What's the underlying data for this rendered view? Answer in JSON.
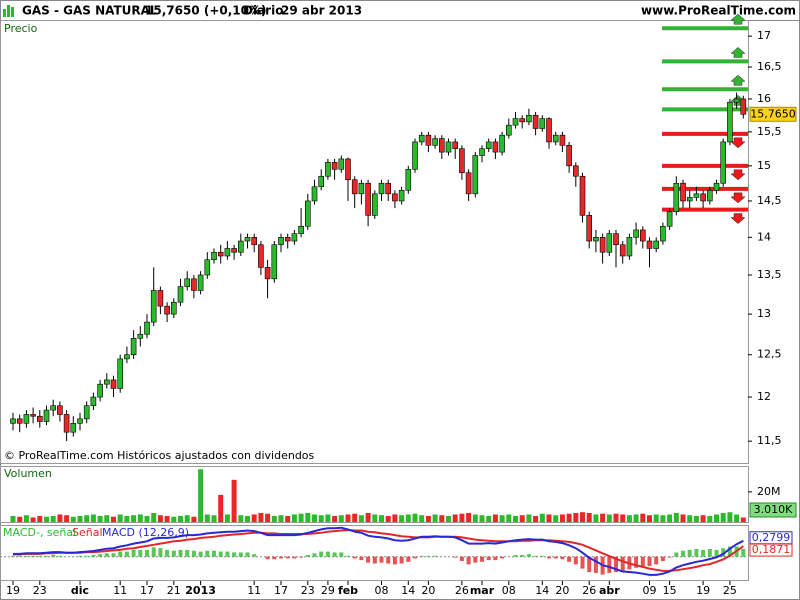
{
  "chart_data": {
    "type": "candlestick",
    "header": {
      "symbol": "GAS - GAS NATURAL",
      "quote": "15,7650 (+0,10%)",
      "period": "Diario",
      "date": "29 abr 2013",
      "site": "www.ProRealTime.com"
    },
    "panel_label": "Precio",
    "footer": "© ProRealTime.com Históricos ajustados con dividendos",
    "log_scale": true,
    "up_color": "#2db92d",
    "down_color": "#e82828",
    "xlim": [
      -1.94,
      109.7
    ],
    "xticks": [
      {
        "value": 0,
        "label": "19"
      },
      {
        "value": 4,
        "label": "23"
      },
      {
        "value": 10,
        "label": "dic"
      },
      {
        "value": 16,
        "label": "11"
      },
      {
        "value": 20,
        "label": "17"
      },
      {
        "value": 24,
        "label": "21"
      },
      {
        "value": 28,
        "label": "2013"
      },
      {
        "value": 36,
        "label": "11"
      },
      {
        "value": 40,
        "label": "17"
      },
      {
        "value": 44,
        "label": "23"
      },
      {
        "value": 47,
        "label": "29"
      },
      {
        "value": 50,
        "label": "feb"
      },
      {
        "value": 55,
        "label": "08"
      },
      {
        "value": 59,
        "label": "14"
      },
      {
        "value": 62,
        "label": "20"
      },
      {
        "value": 67,
        "label": "26"
      },
      {
        "value": 70,
        "label": "mar"
      },
      {
        "value": 74,
        "label": "08"
      },
      {
        "value": 79,
        "label": "14"
      },
      {
        "value": 82,
        "label": "20"
      },
      {
        "value": 86,
        "label": "26"
      },
      {
        "value": 89,
        "label": "abr"
      },
      {
        "value": 95,
        "label": "09"
      },
      {
        "value": 98,
        "label": "15"
      },
      {
        "value": 103,
        "label": "19"
      },
      {
        "value": 107,
        "label": "25"
      }
    ],
    "ylim": [
      11.26,
      17.25
    ],
    "yticks": [
      {
        "value": 11.5,
        "label": "11,5"
      },
      12,
      {
        "value": 12.5,
        "label": "12,5"
      },
      13,
      {
        "value": 13.5,
        "label": "13,5"
      },
      14,
      {
        "value": 14.5,
        "label": "14,5"
      },
      15,
      {
        "value": 15.5,
        "label": "15,5"
      },
      16,
      {
        "value": 16.5,
        "label": "16,5"
      },
      17
    ],
    "last_price": {
      "value": 15.765,
      "label": "15,7650"
    },
    "open": [
      11.7,
      11.75,
      11.7,
      11.8,
      11.78,
      11.72,
      11.85,
      11.9,
      11.8,
      11.6,
      11.7,
      11.75,
      11.9,
      12.0,
      12.15,
      12.2,
      12.1,
      12.45,
      12.5,
      12.7,
      12.75,
      12.9,
      13.3,
      13.1,
      13.0,
      13.15,
      13.35,
      13.45,
      13.3,
      13.5,
      13.7,
      13.8,
      13.75,
      13.85,
      13.8,
      13.95,
      14.0,
      13.9,
      13.6,
      13.45,
      13.9,
      14.0,
      13.95,
      14.05,
      14.15,
      14.5,
      14.7,
      14.85,
      15.05,
      14.95,
      15.1,
      14.8,
      14.6,
      14.75,
      14.3,
      14.6,
      14.75,
      14.6,
      14.5,
      14.65,
      14.95,
      15.35,
      15.45,
      15.3,
      15.4,
      15.2,
      15.35,
      15.25,
      14.9,
      14.6,
      15.15,
      15.25,
      15.35,
      15.2,
      15.45,
      15.6,
      15.7,
      15.65,
      15.75,
      15.55,
      15.7,
      15.35,
      15.45,
      15.3,
      15.0,
      14.85,
      14.3,
      13.95,
      14.0,
      13.8,
      14.05,
      13.9,
      13.75,
      14.0,
      14.1,
      13.95,
      13.85,
      13.95,
      14.15,
      14.35,
      14.75,
      14.5,
      14.55,
      14.6,
      14.5,
      14.65,
      14.75,
      15.35,
      15.95,
      16.0
    ],
    "high": [
      11.82,
      11.8,
      11.85,
      11.88,
      11.85,
      11.9,
      11.97,
      11.95,
      11.85,
      11.78,
      11.82,
      11.95,
      12.05,
      12.2,
      12.28,
      12.25,
      12.5,
      12.6,
      12.8,
      12.85,
      13.0,
      13.6,
      13.35,
      13.15,
      13.2,
      13.45,
      13.55,
      13.5,
      13.55,
      13.8,
      13.85,
      13.9,
      13.95,
      13.9,
      14.05,
      14.05,
      14.05,
      13.95,
      13.7,
      13.95,
      14.05,
      14.05,
      14.1,
      14.4,
      14.6,
      14.8,
      14.95,
      15.1,
      15.1,
      15.15,
      15.12,
      14.85,
      14.8,
      14.8,
      14.65,
      14.8,
      14.8,
      14.65,
      14.7,
      15.0,
      15.4,
      15.5,
      15.5,
      15.45,
      15.45,
      15.4,
      15.4,
      15.3,
      14.95,
      15.2,
      15.3,
      15.4,
      15.4,
      15.5,
      15.7,
      15.8,
      15.75,
      15.85,
      15.8,
      15.75,
      15.72,
      15.5,
      15.5,
      15.35,
      15.05,
      14.9,
      14.35,
      14.1,
      14.05,
      14.1,
      14.1,
      13.95,
      14.05,
      14.2,
      14.15,
      14.0,
      14.0,
      14.2,
      14.4,
      14.85,
      14.8,
      14.65,
      14.7,
      14.65,
      14.7,
      14.8,
      15.4,
      16.0,
      16.1,
      16.05
    ],
    "low": [
      11.62,
      11.6,
      11.65,
      11.7,
      11.65,
      11.68,
      11.78,
      11.72,
      11.5,
      11.55,
      11.62,
      11.7,
      11.85,
      11.95,
      12.1,
      12.0,
      12.05,
      12.4,
      12.45,
      12.6,
      12.7,
      12.85,
      13.0,
      12.9,
      12.95,
      13.1,
      13.3,
      13.2,
      13.25,
      13.45,
      13.65,
      13.65,
      13.7,
      13.7,
      13.75,
      13.85,
      13.8,
      13.5,
      13.2,
      13.4,
      13.8,
      13.85,
      13.9,
      14.0,
      14.1,
      14.45,
      14.65,
      14.8,
      14.8,
      14.9,
      14.5,
      14.4,
      14.45,
      14.15,
      14.25,
      14.5,
      14.5,
      14.4,
      14.45,
      14.6,
      14.9,
      15.3,
      15.2,
      15.25,
      15.1,
      15.15,
      15.1,
      14.8,
      14.5,
      14.55,
      15.05,
      15.2,
      15.1,
      15.15,
      15.4,
      15.55,
      15.55,
      15.6,
      15.45,
      15.5,
      15.25,
      15.3,
      15.2,
      14.9,
      14.7,
      14.2,
      13.85,
      13.8,
      13.65,
      13.75,
      13.6,
      13.65,
      13.7,
      13.9,
      13.85,
      13.6,
      13.8,
      13.9,
      14.1,
      14.3,
      14.4,
      14.4,
      14.5,
      14.4,
      14.45,
      14.6,
      14.7,
      15.3,
      15.85,
      15.7
    ],
    "close": [
      11.75,
      11.7,
      11.8,
      11.78,
      11.72,
      11.85,
      11.9,
      11.8,
      11.6,
      11.7,
      11.75,
      11.9,
      12.0,
      12.15,
      12.2,
      12.1,
      12.45,
      12.5,
      12.7,
      12.75,
      12.9,
      13.3,
      13.1,
      13.0,
      13.15,
      13.35,
      13.45,
      13.3,
      13.5,
      13.7,
      13.8,
      13.75,
      13.85,
      13.8,
      13.95,
      14.0,
      13.9,
      13.6,
      13.45,
      13.9,
      14.0,
      13.95,
      14.05,
      14.15,
      14.5,
      14.7,
      14.85,
      15.05,
      14.95,
      15.1,
      14.8,
      14.6,
      14.75,
      14.3,
      14.6,
      14.75,
      14.6,
      14.5,
      14.65,
      14.95,
      15.35,
      15.45,
      15.3,
      15.4,
      15.2,
      15.35,
      15.25,
      14.9,
      14.6,
      15.15,
      15.25,
      15.35,
      15.2,
      15.45,
      15.6,
      15.7,
      15.65,
      15.75,
      15.55,
      15.7,
      15.35,
      15.45,
      15.3,
      15.0,
      14.85,
      14.3,
      13.95,
      14.0,
      13.8,
      14.05,
      13.9,
      13.75,
      14.0,
      14.1,
      13.95,
      13.85,
      13.95,
      14.15,
      14.35,
      14.75,
      14.5,
      14.55,
      14.6,
      14.5,
      14.65,
      14.75,
      15.35,
      15.95,
      16.0,
      15.765
    ],
    "levels": [
      {
        "value": 17.13,
        "color": "#33b233"
      },
      {
        "value": 16.59,
        "color": "#33b233"
      },
      {
        "value": 16.15,
        "color": "#33b233"
      },
      {
        "value": 15.84,
        "color": "#33b233"
      },
      {
        "value": 15.47,
        "color": "#e81a1a"
      },
      {
        "value": 15.0,
        "color": "#e81a1a"
      },
      {
        "value": 14.67,
        "color": "#e81a1a"
      },
      {
        "value": 14.38,
        "color": "#e81a1a"
      }
    ],
    "volume": {
      "title": "Volumen",
      "ylim": [
        0,
        36.5
      ],
      "yticks": [
        {
          "value": 20,
          "label": "20M"
        }
      ],
      "last_label": "3.010K",
      "values": [
        4,
        3.5,
        4.5,
        3,
        4,
        3.5,
        4,
        5,
        4.5,
        3.5,
        4,
        4.5,
        5,
        4,
        4.5,
        3.5,
        5,
        4,
        4.5,
        5,
        4,
        6,
        4.5,
        4,
        3.5,
        4,
        4.5,
        3.5,
        35,
        5,
        4.5,
        18,
        5,
        28,
        4.5,
        4,
        5,
        6,
        5.5,
        4,
        4.5,
        4,
        5,
        5.5,
        6,
        5,
        4.5,
        5,
        4,
        4.5,
        5,
        5.5,
        4.5,
        6,
        5,
        4.5,
        4,
        5,
        4.5,
        5,
        5.5,
        4.5,
        4,
        5,
        4.5,
        4,
        5,
        5.5,
        6,
        5,
        4.5,
        4,
        5,
        4.5,
        5,
        4,
        4.5,
        5,
        4,
        5.5,
        5,
        4.5,
        5,
        5.5,
        6,
        6.5,
        6,
        5,
        5.5,
        5,
        5.5,
        5,
        4.5,
        5,
        5.5,
        4.5,
        5,
        4.5,
        5,
        6,
        5,
        4.5,
        4,
        4.5,
        4,
        5,
        6,
        6.5,
        5,
        3.01
      ]
    },
    "macd": {
      "ylim": [
        -0.41,
        0.54
      ],
      "histogram": {
        "name": "MACD-, señal",
        "color": "#2db92d"
      },
      "series": [
        {
          "name": "Señal",
          "color": "#e02828",
          "last_label": "0,1871",
          "values": [
            0.04,
            0.04,
            0.05,
            0.05,
            0.05,
            0.06,
            0.06,
            0.07,
            0.07,
            0.07,
            0.07,
            0.08,
            0.08,
            0.09,
            0.1,
            0.11,
            0.12,
            0.14,
            0.15,
            0.17,
            0.19,
            0.21,
            0.23,
            0.25,
            0.27,
            0.28,
            0.3,
            0.31,
            0.33,
            0.34,
            0.35,
            0.37,
            0.38,
            0.39,
            0.4,
            0.41,
            0.42,
            0.42,
            0.41,
            0.41,
            0.4,
            0.4,
            0.4,
            0.4,
            0.4,
            0.41,
            0.42,
            0.44,
            0.45,
            0.46,
            0.47,
            0.46,
            0.46,
            0.44,
            0.43,
            0.41,
            0.4,
            0.38,
            0.36,
            0.35,
            0.34,
            0.34,
            0.34,
            0.35,
            0.35,
            0.35,
            0.35,
            0.34,
            0.32,
            0.3,
            0.29,
            0.28,
            0.27,
            0.27,
            0.27,
            0.27,
            0.28,
            0.28,
            0.29,
            0.29,
            0.29,
            0.28,
            0.27,
            0.26,
            0.24,
            0.21,
            0.16,
            0.11,
            0.06,
            0.01,
            -0.04,
            -0.08,
            -0.12,
            -0.15,
            -0.18,
            -0.21,
            -0.23,
            -0.25,
            -0.25,
            -0.24,
            -0.22,
            -0.2,
            -0.18,
            -0.15,
            -0.13,
            -0.09,
            -0.05,
            0.02,
            0.1,
            0.1871
          ]
        },
        {
          "name": "MACD (12,26,9)",
          "color": "#2828d8",
          "last_label": "0,2799",
          "values": [
            0.05,
            0.05,
            0.06,
            0.06,
            0.06,
            0.07,
            0.08,
            0.08,
            0.07,
            0.07,
            0.08,
            0.09,
            0.1,
            0.12,
            0.14,
            0.15,
            0.18,
            0.2,
            0.23,
            0.25,
            0.27,
            0.32,
            0.33,
            0.33,
            0.34,
            0.36,
            0.38,
            0.38,
            0.39,
            0.41,
            0.42,
            0.43,
            0.44,
            0.44,
            0.45,
            0.46,
            0.45,
            0.42,
            0.38,
            0.38,
            0.38,
            0.38,
            0.38,
            0.39,
            0.42,
            0.45,
            0.48,
            0.5,
            0.5,
            0.51,
            0.48,
            0.44,
            0.42,
            0.37,
            0.35,
            0.34,
            0.32,
            0.29,
            0.28,
            0.29,
            0.32,
            0.35,
            0.35,
            0.36,
            0.35,
            0.35,
            0.34,
            0.29,
            0.23,
            0.23,
            0.23,
            0.24,
            0.23,
            0.25,
            0.27,
            0.29,
            0.3,
            0.31,
            0.3,
            0.3,
            0.27,
            0.26,
            0.24,
            0.2,
            0.15,
            0.07,
            -0.02,
            -0.08,
            -0.15,
            -0.18,
            -0.22,
            -0.26,
            -0.27,
            -0.28,
            -0.3,
            -0.32,
            -0.32,
            -0.3,
            -0.26,
            -0.19,
            -0.15,
            -0.12,
            -0.09,
            -0.07,
            -0.04,
            -0.01,
            0.05,
            0.14,
            0.22,
            0.2799
          ]
        }
      ]
    }
  }
}
